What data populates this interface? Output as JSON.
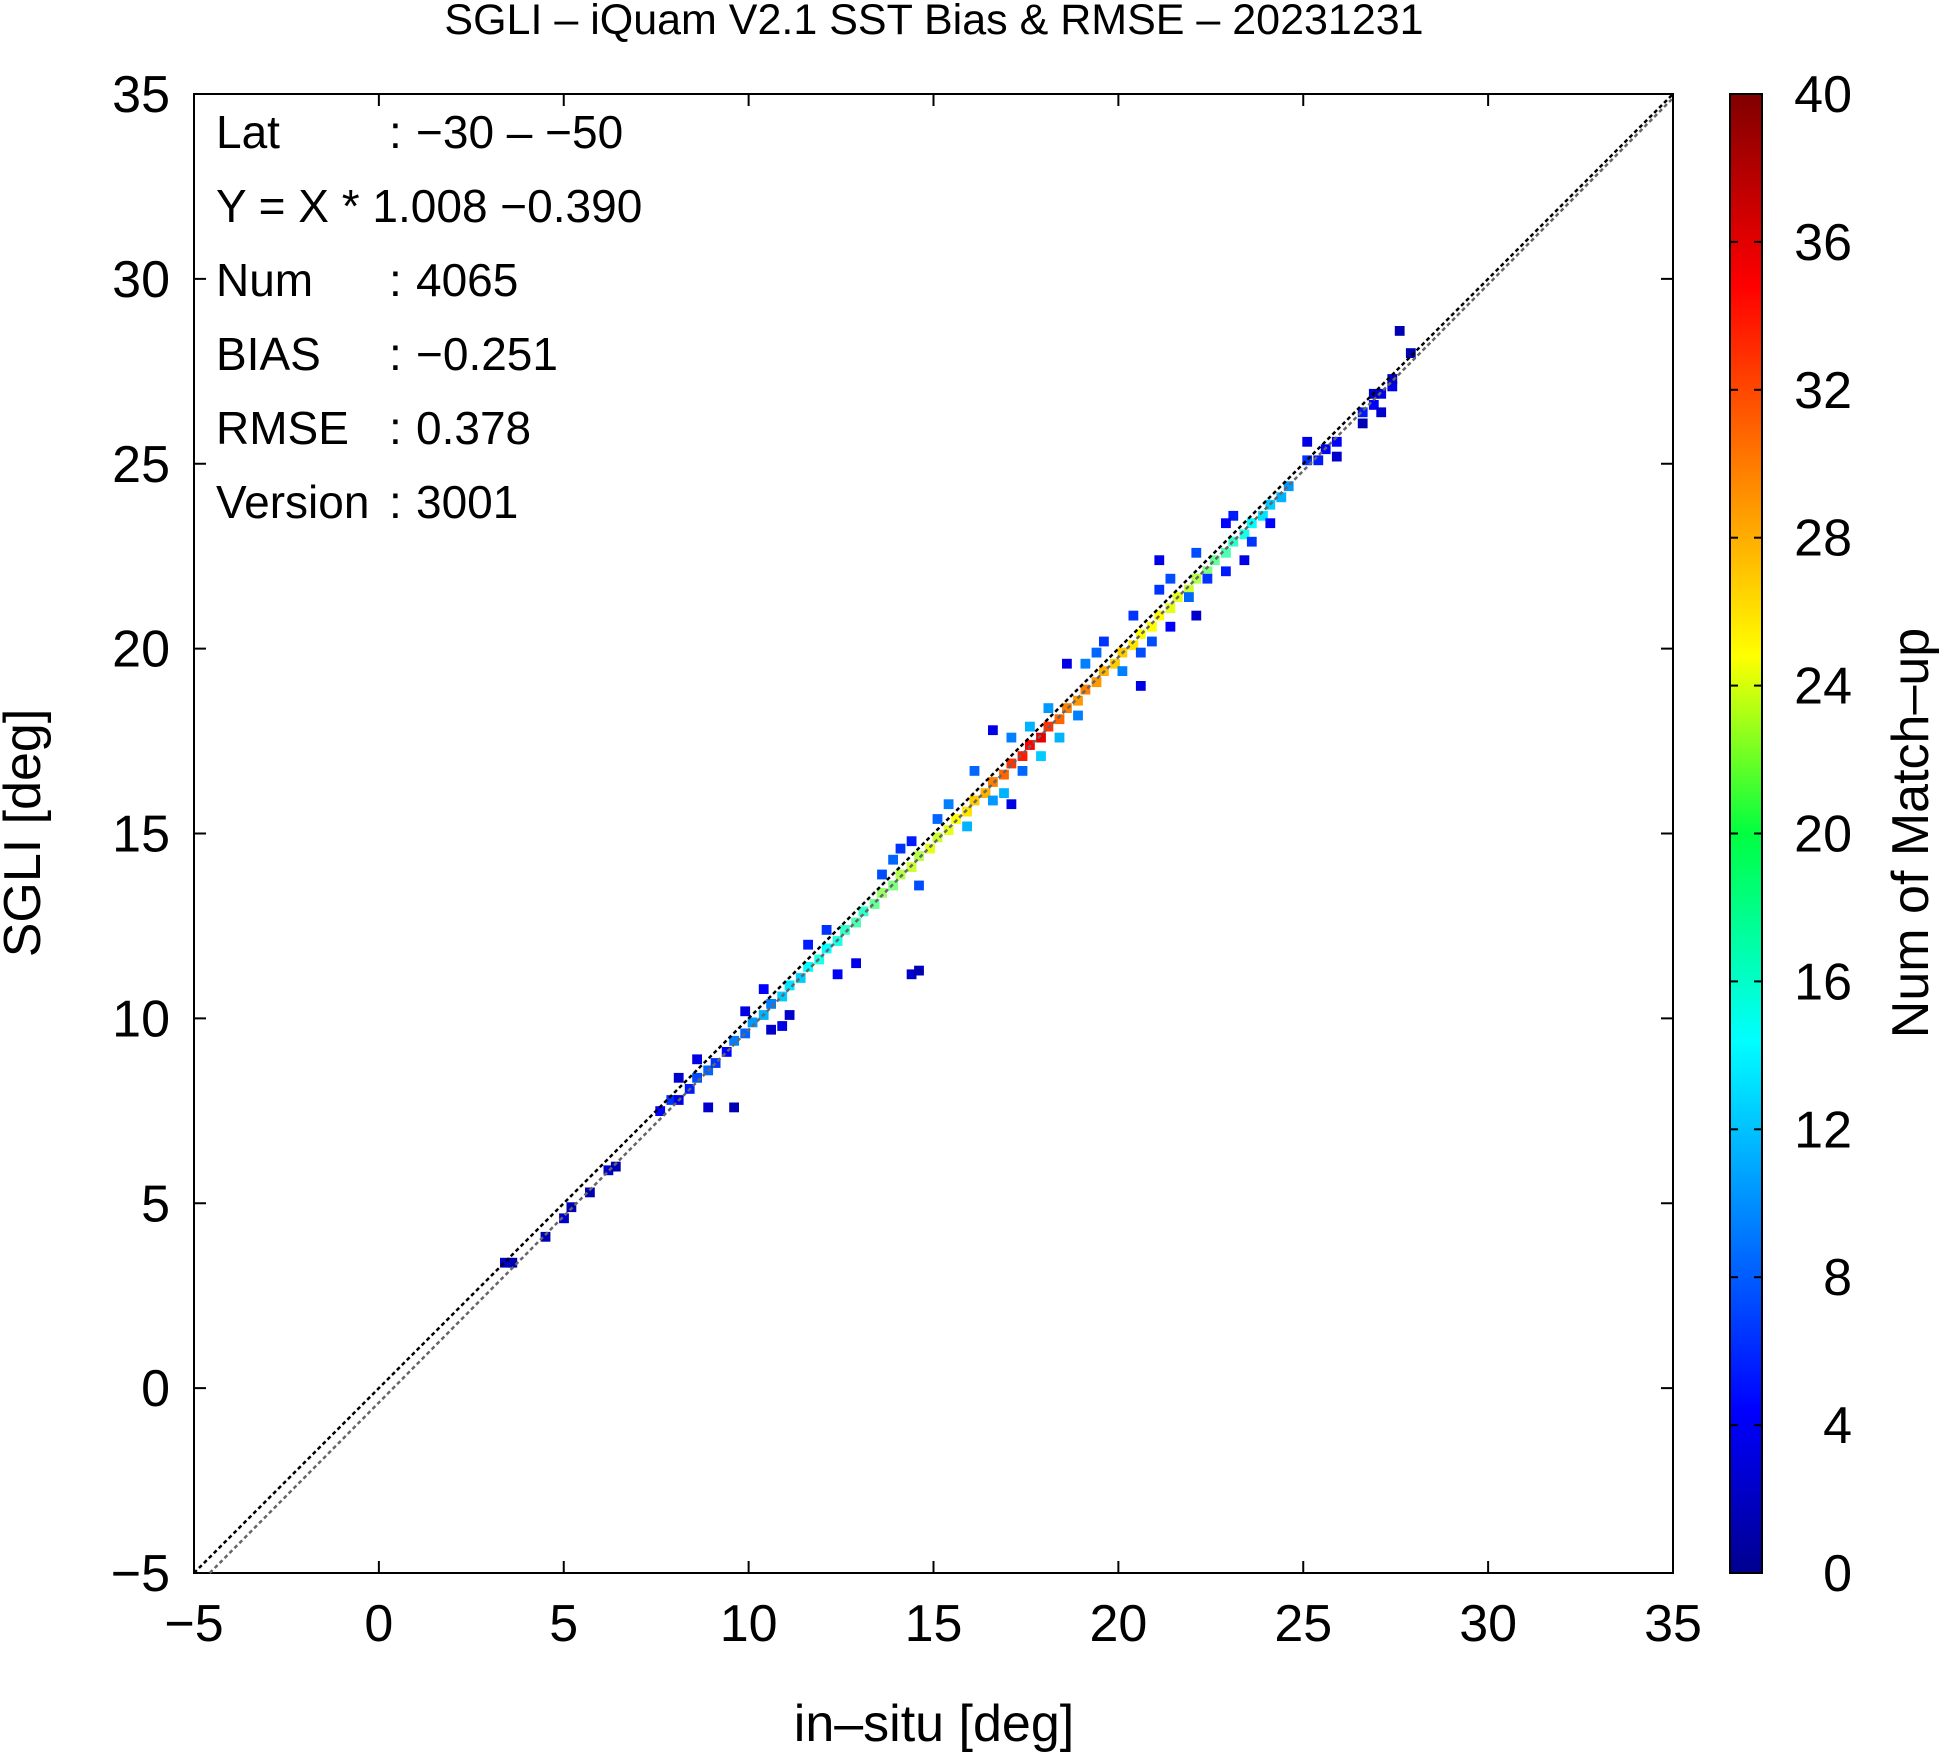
{
  "chart_data": {
    "type": "heatmap",
    "title": "SGLI – iQuam V2.1 SST Bias & RMSE  – 20231231",
    "xlabel": "in–situ [deg]",
    "ylabel": "SGLI [deg]",
    "colorbar_label": "Num of Match–up",
    "xlim": [
      -5,
      35
    ],
    "ylim": [
      -5,
      35
    ],
    "x_ticks": [
      -5,
      0,
      5,
      10,
      15,
      20,
      25,
      30,
      35
    ],
    "y_ticks": [
      -5,
      0,
      5,
      10,
      15,
      20,
      25,
      30,
      35
    ],
    "x_tick_labels": [
      "−5",
      "0",
      "5",
      "10",
      "15",
      "20",
      "25",
      "30",
      "35"
    ],
    "y_tick_labels": [
      "−5",
      "0",
      "5",
      "10",
      "15",
      "20",
      "25",
      "30",
      "35"
    ],
    "color_range": [
      0,
      40
    ],
    "color_ticks": [
      0,
      4,
      8,
      12,
      16,
      20,
      24,
      28,
      32,
      36,
      40
    ],
    "colormap": "jet",
    "grid": false,
    "annotations": [
      {
        "key": "Lat",
        "sep": ":",
        "value": "−30 – −50"
      },
      {
        "key": "Y = X * 1.008 −0.390",
        "sep": "",
        "value": ""
      },
      {
        "key": "Num",
        "sep": ":",
        "value": "4065"
      },
      {
        "key": "BIAS",
        "sep": ":",
        "value": "−0.251"
      },
      {
        "key": "RMSE",
        "sep": ":",
        "value": "0.378"
      },
      {
        "key": "Version",
        "sep": ":",
        "value": "3001"
      }
    ],
    "fit_line": {
      "slope": 1.008,
      "intercept": -0.39
    },
    "one_to_one_line": true,
    "bin_size": 0.25,
    "cells": [
      [
        3.4,
        3.4,
        3
      ],
      [
        3.6,
        3.4,
        2
      ],
      [
        4.5,
        4.1,
        2
      ],
      [
        5.0,
        4.6,
        3
      ],
      [
        5.2,
        4.9,
        2
      ],
      [
        5.7,
        5.3,
        2
      ],
      [
        6.2,
        5.9,
        3
      ],
      [
        6.4,
        6.0,
        2
      ],
      [
        7.6,
        7.5,
        5
      ],
      [
        7.9,
        7.8,
        7
      ],
      [
        8.1,
        7.8,
        4
      ],
      [
        8.4,
        8.1,
        6
      ],
      [
        8.6,
        8.4,
        8
      ],
      [
        8.9,
        8.6,
        9
      ],
      [
        9.1,
        8.8,
        7
      ],
      [
        8.6,
        8.9,
        4
      ],
      [
        8.9,
        7.6,
        3
      ],
      [
        9.6,
        7.6,
        2
      ],
      [
        8.1,
        8.4,
        3
      ],
      [
        9.4,
        9.1,
        5
      ],
      [
        9.6,
        9.4,
        10
      ],
      [
        9.9,
        9.6,
        9
      ],
      [
        10.1,
        9.9,
        11
      ],
      [
        10.4,
        10.1,
        12
      ],
      [
        10.6,
        10.4,
        10
      ],
      [
        10.9,
        10.6,
        13
      ],
      [
        11.1,
        10.9,
        14
      ],
      [
        11.4,
        11.1,
        13
      ],
      [
        9.9,
        10.2,
        4
      ],
      [
        10.4,
        10.8,
        5
      ],
      [
        10.9,
        9.8,
        4
      ],
      [
        11.1,
        10.1,
        3
      ],
      [
        10.6,
        9.7,
        3
      ],
      [
        11.6,
        11.4,
        15
      ],
      [
        11.9,
        11.6,
        16
      ],
      [
        12.1,
        11.9,
        15
      ],
      [
        12.4,
        12.1,
        16
      ],
      [
        12.6,
        12.4,
        17
      ],
      [
        12.9,
        12.6,
        18
      ],
      [
        13.1,
        12.9,
        17
      ],
      [
        11.6,
        12.0,
        6
      ],
      [
        12.1,
        12.4,
        7
      ],
      [
        12.4,
        11.2,
        5
      ],
      [
        12.9,
        11.5,
        4
      ],
      [
        14.4,
        11.2,
        3
      ],
      [
        14.6,
        11.3,
        2
      ],
      [
        13.4,
        13.1,
        19
      ],
      [
        13.6,
        13.4,
        21
      ],
      [
        13.9,
        13.6,
        20
      ],
      [
        14.1,
        13.9,
        22
      ],
      [
        14.4,
        14.1,
        23
      ],
      [
        14.6,
        14.4,
        22
      ],
      [
        14.9,
        14.6,
        24
      ],
      [
        15.1,
        14.9,
        23
      ],
      [
        13.6,
        13.9,
        8
      ],
      [
        13.9,
        14.3,
        9
      ],
      [
        14.6,
        13.6,
        8
      ],
      [
        14.1,
        14.6,
        7
      ],
      [
        14.4,
        14.8,
        6
      ],
      [
        15.4,
        15.1,
        24
      ],
      [
        15.6,
        15.4,
        25
      ],
      [
        15.9,
        15.6,
        26
      ],
      [
        16.1,
        15.9,
        27
      ],
      [
        16.4,
        16.1,
        28
      ],
      [
        16.6,
        16.4,
        30
      ],
      [
        16.9,
        16.6,
        31
      ],
      [
        17.1,
        16.9,
        33
      ],
      [
        15.4,
        15.8,
        10
      ],
      [
        15.9,
        15.2,
        12
      ],
      [
        15.1,
        15.4,
        9
      ],
      [
        16.6,
        15.9,
        11
      ],
      [
        16.9,
        16.1,
        12
      ],
      [
        16.1,
        16.7,
        9
      ],
      [
        17.4,
        17.1,
        34
      ],
      [
        17.6,
        17.4,
        35
      ],
      [
        17.9,
        17.6,
        36
      ],
      [
        18.1,
        17.9,
        33
      ],
      [
        18.4,
        18.1,
        31
      ],
      [
        18.6,
        18.4,
        30
      ],
      [
        18.9,
        18.6,
        29
      ],
      [
        19.1,
        18.9,
        30
      ],
      [
        17.1,
        17.6,
        10
      ],
      [
        17.6,
        17.9,
        12
      ],
      [
        18.1,
        18.4,
        11
      ],
      [
        17.9,
        17.1,
        13
      ],
      [
        18.4,
        17.6,
        12
      ],
      [
        18.9,
        18.2,
        10
      ],
      [
        17.4,
        16.7,
        9
      ],
      [
        17.1,
        15.8,
        4
      ],
      [
        16.6,
        17.8,
        4
      ],
      [
        19.4,
        19.1,
        29
      ],
      [
        19.6,
        19.4,
        28
      ],
      [
        19.9,
        19.6,
        27
      ],
      [
        20.1,
        19.9,
        27
      ],
      [
        20.4,
        20.1,
        26
      ],
      [
        20.6,
        20.4,
        25
      ],
      [
        20.9,
        20.6,
        25
      ],
      [
        21.1,
        20.9,
        25
      ],
      [
        19.1,
        19.6,
        10
      ],
      [
        19.4,
        19.9,
        9
      ],
      [
        20.1,
        19.4,
        10
      ],
      [
        20.6,
        19.9,
        8
      ],
      [
        19.6,
        20.2,
        7
      ],
      [
        20.4,
        20.9,
        7
      ],
      [
        20.9,
        20.2,
        8
      ],
      [
        20.6,
        19.0,
        4
      ],
      [
        18.6,
        19.6,
        4
      ],
      [
        21.4,
        21.1,
        24
      ],
      [
        21.6,
        21.4,
        24
      ],
      [
        21.9,
        21.6,
        23
      ],
      [
        22.1,
        21.9,
        22
      ],
      [
        22.4,
        22.1,
        20
      ],
      [
        22.6,
        22.4,
        19
      ],
      [
        22.9,
        22.6,
        18
      ],
      [
        23.1,
        22.9,
        17
      ],
      [
        21.4,
        21.9,
        8
      ],
      [
        21.1,
        21.6,
        7
      ],
      [
        21.9,
        21.4,
        9
      ],
      [
        22.4,
        21.9,
        7
      ],
      [
        22.1,
        22.6,
        8
      ],
      [
        22.9,
        22.1,
        6
      ],
      [
        21.4,
        20.6,
        5
      ],
      [
        21.1,
        22.4,
        4
      ],
      [
        22.1,
        20.9,
        3
      ],
      [
        23.4,
        23.1,
        16
      ],
      [
        23.6,
        23.4,
        15
      ],
      [
        23.9,
        23.6,
        14
      ],
      [
        24.1,
        23.9,
        13
      ],
      [
        24.4,
        24.1,
        12
      ],
      [
        24.6,
        24.4,
        11
      ],
      [
        23.1,
        23.6,
        6
      ],
      [
        23.6,
        22.9,
        7
      ],
      [
        24.1,
        23.4,
        5
      ],
      [
        22.9,
        23.4,
        5
      ],
      [
        23.4,
        22.4,
        4
      ],
      [
        25.1,
        25.1,
        7
      ],
      [
        25.4,
        25.1,
        6
      ],
      [
        25.6,
        25.4,
        5
      ],
      [
        25.9,
        25.6,
        5
      ],
      [
        25.1,
        25.6,
        4
      ],
      [
        25.9,
        25.2,
        3
      ],
      [
        26.6,
        26.4,
        6
      ],
      [
        26.9,
        26.6,
        5
      ],
      [
        27.1,
        26.9,
        4
      ],
      [
        27.4,
        27.1,
        4
      ],
      [
        26.9,
        26.9,
        3
      ],
      [
        27.1,
        26.4,
        3
      ],
      [
        26.6,
        26.1,
        2
      ],
      [
        27.6,
        28.6,
        2
      ],
      [
        27.9,
        28.0,
        2
      ],
      [
        27.4,
        27.3,
        3
      ]
    ]
  }
}
